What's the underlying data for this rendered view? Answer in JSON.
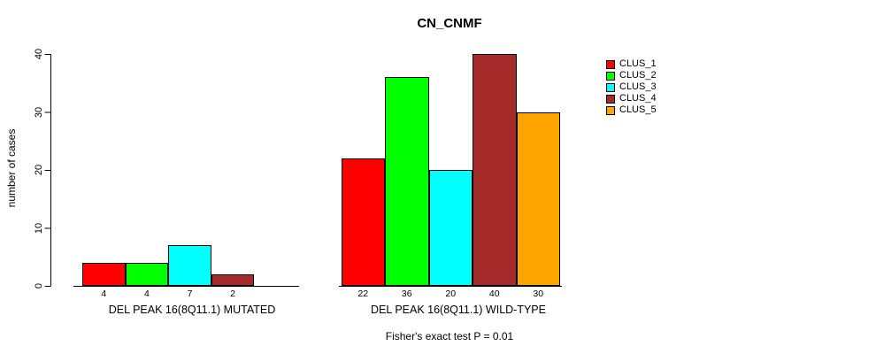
{
  "title": "CN_CNMF",
  "y_axis": {
    "label": "number of cases"
  },
  "footer": "Fisher's exact test P = 0.01",
  "legend": {
    "entries": [
      {
        "label": "CLUS_1",
        "color": "#FF0000"
      },
      {
        "label": "CLUS_2",
        "color": "#00FF00"
      },
      {
        "label": "CLUS_3",
        "color": "#00FFFF"
      },
      {
        "label": "CLUS_4",
        "color": "#A52A2A"
      },
      {
        "label": "CLUS_5",
        "color": "#FFA500"
      }
    ]
  },
  "chart_data": {
    "type": "bar",
    "title": "CN_CNMF",
    "ylabel": "number of cases",
    "ylim": [
      0,
      40
    ],
    "yticks": [
      0,
      10,
      20,
      30,
      40
    ],
    "grid": false,
    "legend_position": "right",
    "categories": [
      "DEL PEAK 16(8Q11.1) MUTATED",
      "DEL PEAK 16(8Q11.1) WILD-TYPE"
    ],
    "series": [
      {
        "name": "CLUS_1",
        "color": "#FF0000",
        "values": [
          4,
          22
        ]
      },
      {
        "name": "CLUS_2",
        "color": "#00FF00",
        "values": [
          4,
          36
        ]
      },
      {
        "name": "CLUS_3",
        "color": "#00FFFF",
        "values": [
          7,
          20
        ]
      },
      {
        "name": "CLUS_4",
        "color": "#A52A2A",
        "values": [
          2,
          40
        ]
      },
      {
        "name": "CLUS_5",
        "color": "#FFA500",
        "values": [
          0,
          30
        ]
      }
    ],
    "bar_value_labels": [
      [
        "4",
        "4",
        "7",
        "2",
        ""
      ],
      [
        "22",
        "36",
        "20",
        "40",
        "30"
      ]
    ],
    "annotation": "Fisher's exact test P = 0.01"
  }
}
